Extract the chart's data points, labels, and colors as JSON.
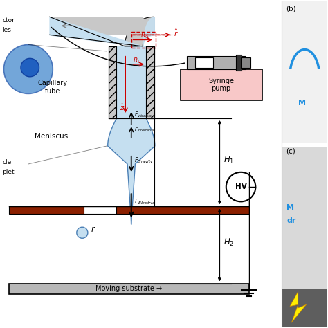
{
  "bg_color": "#ffffff",
  "blue_fill": "#c5dff0",
  "blue_edge": "#4a7fb5",
  "red_col": "#cc0000",
  "dark_red": "#8B2000",
  "pink_bg": "#f8c8c8",
  "gray_wall": "#c8c8c8",
  "gray_sub": "#b8b8b8",
  "syringe_pump_label": "Syringe\npump",
  "moving_substrate_label": "Moving substrate →",
  "HV_label": "HV",
  "capillary_tube_label": "Capillary\ntube",
  "meniscus_label": "Meniscus"
}
